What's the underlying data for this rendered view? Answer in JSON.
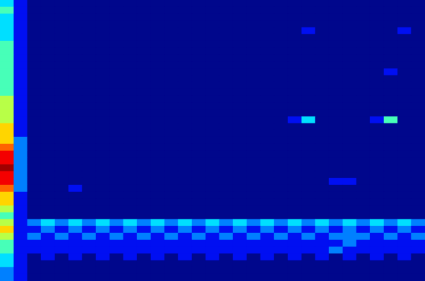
{
  "chart_data": {
    "type": "heatmap",
    "tick_labels": false,
    "color_range": [
      0,
      9
    ],
    "cells": [
      [
        3,
        1,
        0,
        0,
        0,
        0,
        0,
        0,
        0,
        0,
        0,
        0,
        0,
        0,
        0,
        0,
        0,
        0,
        0,
        0,
        0,
        0,
        0,
        0,
        0,
        0,
        0,
        0,
        0,
        0,
        0
      ],
      [
        4,
        1,
        0,
        0,
        0,
        0,
        0,
        0,
        0,
        0,
        0,
        0,
        0,
        0,
        0,
        0,
        0,
        0,
        0,
        0,
        0,
        0,
        0,
        0,
        0,
        0,
        0,
        0,
        0,
        0,
        0
      ],
      [
        3,
        1,
        0,
        0,
        0,
        0,
        0,
        0,
        0,
        0,
        0,
        0,
        0,
        0,
        0,
        0,
        0,
        0,
        0,
        0,
        0,
        0,
        0,
        0,
        0,
        0,
        0,
        0,
        0,
        0,
        0
      ],
      [
        3,
        1,
        0,
        0,
        0,
        0,
        0,
        0,
        0,
        0,
        0,
        0,
        0,
        0,
        0,
        0,
        0,
        0,
        0,
        0,
        0,
        0,
        0,
        0,
        0,
        0,
        0,
        0,
        0,
        0,
        0
      ],
      [
        3,
        1,
        0,
        0,
        0,
        0,
        0,
        0,
        0,
        0,
        0,
        0,
        0,
        0,
        0,
        0,
        0,
        0,
        0,
        0,
        0,
        0,
        1,
        0,
        0,
        0,
        0,
        0,
        0,
        1,
        0
      ],
      [
        3,
        1,
        0,
        0,
        0,
        0,
        0,
        0,
        0,
        0,
        0,
        0,
        0,
        0,
        0,
        0,
        0,
        0,
        0,
        0,
        0,
        0,
        0,
        0,
        0,
        0,
        0,
        0,
        0,
        0,
        0
      ],
      [
        4,
        1,
        0,
        0,
        0,
        0,
        0,
        0,
        0,
        0,
        0,
        0,
        0,
        0,
        0,
        0,
        0,
        0,
        0,
        0,
        0,
        0,
        0,
        0,
        0,
        0,
        0,
        0,
        0,
        0,
        0
      ],
      [
        4,
        1,
        0,
        0,
        0,
        0,
        0,
        0,
        0,
        0,
        0,
        0,
        0,
        0,
        0,
        0,
        0,
        0,
        0,
        0,
        0,
        0,
        0,
        0,
        0,
        0,
        0,
        0,
        0,
        0,
        0
      ],
      [
        4,
        1,
        0,
        0,
        0,
        0,
        0,
        0,
        0,
        0,
        0,
        0,
        0,
        0,
        0,
        0,
        0,
        0,
        0,
        0,
        0,
        0,
        0,
        0,
        0,
        0,
        0,
        0,
        0,
        0,
        0
      ],
      [
        4,
        1,
        0,
        0,
        0,
        0,
        0,
        0,
        0,
        0,
        0,
        0,
        0,
        0,
        0,
        0,
        0,
        0,
        0,
        0,
        0,
        0,
        0,
        0,
        0,
        0,
        0,
        0,
        0,
        0,
        0
      ],
      [
        4,
        1,
        0,
        0,
        0,
        0,
        0,
        0,
        0,
        0,
        0,
        0,
        0,
        0,
        0,
        0,
        0,
        0,
        0,
        0,
        0,
        0,
        0,
        0,
        0,
        0,
        0,
        0,
        1,
        0,
        0
      ],
      [
        4,
        1,
        0,
        0,
        0,
        0,
        0,
        0,
        0,
        0,
        0,
        0,
        0,
        0,
        0,
        0,
        0,
        0,
        0,
        0,
        0,
        0,
        0,
        0,
        0,
        0,
        0,
        0,
        0,
        0,
        0
      ],
      [
        4,
        1,
        0,
        0,
        0,
        0,
        0,
        0,
        0,
        0,
        0,
        0,
        0,
        0,
        0,
        0,
        0,
        0,
        0,
        0,
        0,
        0,
        0,
        0,
        0,
        0,
        0,
        0,
        0,
        0,
        0
      ],
      [
        4,
        1,
        0,
        0,
        0,
        0,
        0,
        0,
        0,
        0,
        0,
        0,
        0,
        0,
        0,
        0,
        0,
        0,
        0,
        0,
        0,
        0,
        0,
        0,
        0,
        0,
        0,
        0,
        0,
        0,
        0
      ],
      [
        5,
        1,
        0,
        0,
        0,
        0,
        0,
        0,
        0,
        0,
        0,
        0,
        0,
        0,
        0,
        0,
        0,
        0,
        0,
        0,
        0,
        0,
        0,
        0,
        0,
        0,
        0,
        0,
        0,
        0,
        0
      ],
      [
        5,
        1,
        0,
        0,
        0,
        0,
        0,
        0,
        0,
        0,
        0,
        0,
        0,
        0,
        0,
        0,
        0,
        0,
        0,
        0,
        0,
        0,
        0,
        0,
        0,
        0,
        0,
        0,
        0,
        0,
        0
      ],
      [
        5,
        1,
        0,
        0,
        0,
        0,
        0,
        0,
        0,
        0,
        0,
        0,
        0,
        0,
        0,
        0,
        0,
        0,
        0,
        0,
        0,
        0,
        0,
        0,
        0,
        0,
        0,
        0,
        0,
        0,
        0
      ],
      [
        5,
        1,
        0,
        0,
        0,
        0,
        0,
        0,
        0,
        0,
        0,
        0,
        0,
        0,
        0,
        0,
        0,
        0,
        0,
        0,
        0,
        1,
        3,
        0,
        0,
        0,
        0,
        1,
        4,
        0,
        0
      ],
      [
        6,
        1,
        0,
        0,
        0,
        0,
        0,
        0,
        0,
        0,
        0,
        0,
        0,
        0,
        0,
        0,
        0,
        0,
        0,
        0,
        0,
        0,
        0,
        0,
        0,
        0,
        0,
        0,
        0,
        0,
        0
      ],
      [
        6,
        1,
        0,
        0,
        0,
        0,
        0,
        0,
        0,
        0,
        0,
        0,
        0,
        0,
        0,
        0,
        0,
        0,
        0,
        0,
        0,
        0,
        0,
        0,
        0,
        0,
        0,
        0,
        0,
        0,
        0
      ],
      [
        6,
        2,
        0,
        0,
        0,
        0,
        0,
        0,
        0,
        0,
        0,
        0,
        0,
        0,
        0,
        0,
        0,
        0,
        0,
        0,
        0,
        0,
        0,
        0,
        0,
        0,
        0,
        0,
        0,
        0,
        0
      ],
      [
        7,
        2,
        0,
        0,
        0,
        0,
        0,
        0,
        0,
        0,
        0,
        0,
        0,
        0,
        0,
        0,
        0,
        0,
        0,
        0,
        0,
        0,
        0,
        0,
        0,
        0,
        0,
        0,
        0,
        0,
        0
      ],
      [
        8,
        2,
        0,
        0,
        0,
        0,
        0,
        0,
        0,
        0,
        0,
        0,
        0,
        0,
        0,
        0,
        0,
        0,
        0,
        0,
        0,
        0,
        0,
        0,
        0,
        0,
        0,
        0,
        0,
        0,
        0
      ],
      [
        8,
        2,
        0,
        0,
        0,
        0,
        0,
        0,
        0,
        0,
        0,
        0,
        0,
        0,
        0,
        0,
        0,
        0,
        0,
        0,
        0,
        0,
        0,
        0,
        0,
        0,
        0,
        0,
        0,
        0,
        0
      ],
      [
        9,
        2,
        0,
        0,
        0,
        0,
        0,
        0,
        0,
        0,
        0,
        0,
        0,
        0,
        0,
        0,
        0,
        0,
        0,
        0,
        0,
        0,
        0,
        0,
        0,
        0,
        0,
        0,
        0,
        0,
        0
      ],
      [
        8,
        2,
        0,
        0,
        0,
        0,
        0,
        0,
        0,
        0,
        0,
        0,
        0,
        0,
        0,
        0,
        0,
        0,
        0,
        0,
        0,
        0,
        0,
        0,
        0,
        0,
        0,
        0,
        0,
        0,
        0
      ],
      [
        8,
        2,
        0,
        0,
        0,
        0,
        0,
        0,
        0,
        0,
        0,
        0,
        0,
        0,
        0,
        0,
        0,
        0,
        0,
        0,
        0,
        0,
        0,
        0,
        1,
        1,
        0,
        0,
        0,
        0,
        0
      ],
      [
        7,
        2,
        0,
        0,
        0,
        1,
        0,
        0,
        0,
        0,
        0,
        0,
        0,
        0,
        0,
        0,
        0,
        0,
        0,
        0,
        0,
        0,
        0,
        0,
        0,
        0,
        0,
        0,
        0,
        0,
        0
      ],
      [
        6,
        1,
        0,
        0,
        0,
        0,
        0,
        0,
        0,
        0,
        0,
        0,
        0,
        0,
        0,
        0,
        0,
        0,
        0,
        0,
        0,
        0,
        0,
        0,
        0,
        0,
        0,
        0,
        0,
        0,
        0
      ],
      [
        6,
        1,
        0,
        0,
        0,
        0,
        0,
        0,
        0,
        0,
        0,
        0,
        0,
        0,
        0,
        0,
        0,
        0,
        0,
        0,
        0,
        0,
        0,
        0,
        0,
        0,
        0,
        0,
        0,
        0,
        0
      ],
      [
        5,
        1,
        0,
        0,
        0,
        0,
        0,
        0,
        0,
        0,
        0,
        0,
        0,
        0,
        0,
        0,
        0,
        0,
        0,
        0,
        0,
        0,
        0,
        0,
        0,
        0,
        0,
        0,
        0,
        0,
        0
      ],
      [
        4,
        1,
        0,
        0,
        0,
        0,
        0,
        0,
        0,
        0,
        0,
        0,
        0,
        0,
        0,
        0,
        0,
        0,
        0,
        0,
        0,
        0,
        0,
        0,
        0,
        0,
        0,
        0,
        0,
        0,
        0
      ],
      [
        5,
        1,
        2,
        3,
        2,
        3,
        2,
        3,
        2,
        3,
        2,
        3,
        2,
        3,
        2,
        3,
        2,
        3,
        2,
        3,
        2,
        3,
        2,
        3,
        2,
        3,
        2,
        3,
        2,
        3,
        2
      ],
      [
        6,
        1,
        1,
        2,
        1,
        2,
        1,
        2,
        1,
        2,
        1,
        2,
        1,
        2,
        1,
        2,
        1,
        2,
        1,
        2,
        1,
        2,
        1,
        2,
        1,
        2,
        1,
        2,
        1,
        2,
        1
      ],
      [
        5,
        1,
        2,
        1,
        2,
        1,
        2,
        1,
        2,
        1,
        2,
        1,
        2,
        1,
        2,
        1,
        2,
        1,
        2,
        1,
        2,
        1,
        2,
        1,
        2,
        2,
        2,
        1,
        2,
        1,
        2
      ],
      [
        4,
        1,
        1,
        1,
        1,
        1,
        1,
        1,
        1,
        1,
        1,
        1,
        1,
        1,
        1,
        1,
        1,
        1,
        1,
        1,
        1,
        1,
        1,
        1,
        1,
        2,
        1,
        1,
        1,
        1,
        1
      ],
      [
        4,
        1,
        1,
        1,
        1,
        1,
        1,
        1,
        1,
        1,
        1,
        1,
        1,
        1,
        1,
        1,
        1,
        1,
        1,
        1,
        1,
        1,
        1,
        1,
        2,
        1,
        1,
        1,
        1,
        1,
        1
      ],
      [
        3,
        1,
        0,
        1,
        0,
        1,
        0,
        1,
        0,
        1,
        0,
        1,
        0,
        1,
        0,
        1,
        0,
        1,
        0,
        1,
        0,
        1,
        0,
        1,
        0,
        1,
        0,
        1,
        0,
        1,
        0
      ],
      [
        3,
        1,
        0,
        0,
        0,
        0,
        0,
        0,
        0,
        0,
        0,
        0,
        0,
        0,
        0,
        0,
        0,
        0,
        0,
        0,
        0,
        0,
        0,
        0,
        0,
        0,
        0,
        0,
        0,
        0,
        0
      ],
      [
        2,
        1,
        0,
        0,
        0,
        0,
        0,
        0,
        0,
        0,
        0,
        0,
        0,
        0,
        0,
        0,
        0,
        0,
        0,
        0,
        0,
        0,
        0,
        0,
        0,
        0,
        0,
        0,
        0,
        0,
        0
      ],
      [
        2,
        1,
        0,
        0,
        0,
        0,
        0,
        0,
        0,
        0,
        0,
        0,
        0,
        0,
        0,
        0,
        0,
        0,
        0,
        0,
        0,
        0,
        0,
        0,
        0,
        0,
        0,
        0,
        0,
        0,
        0
      ]
    ]
  }
}
